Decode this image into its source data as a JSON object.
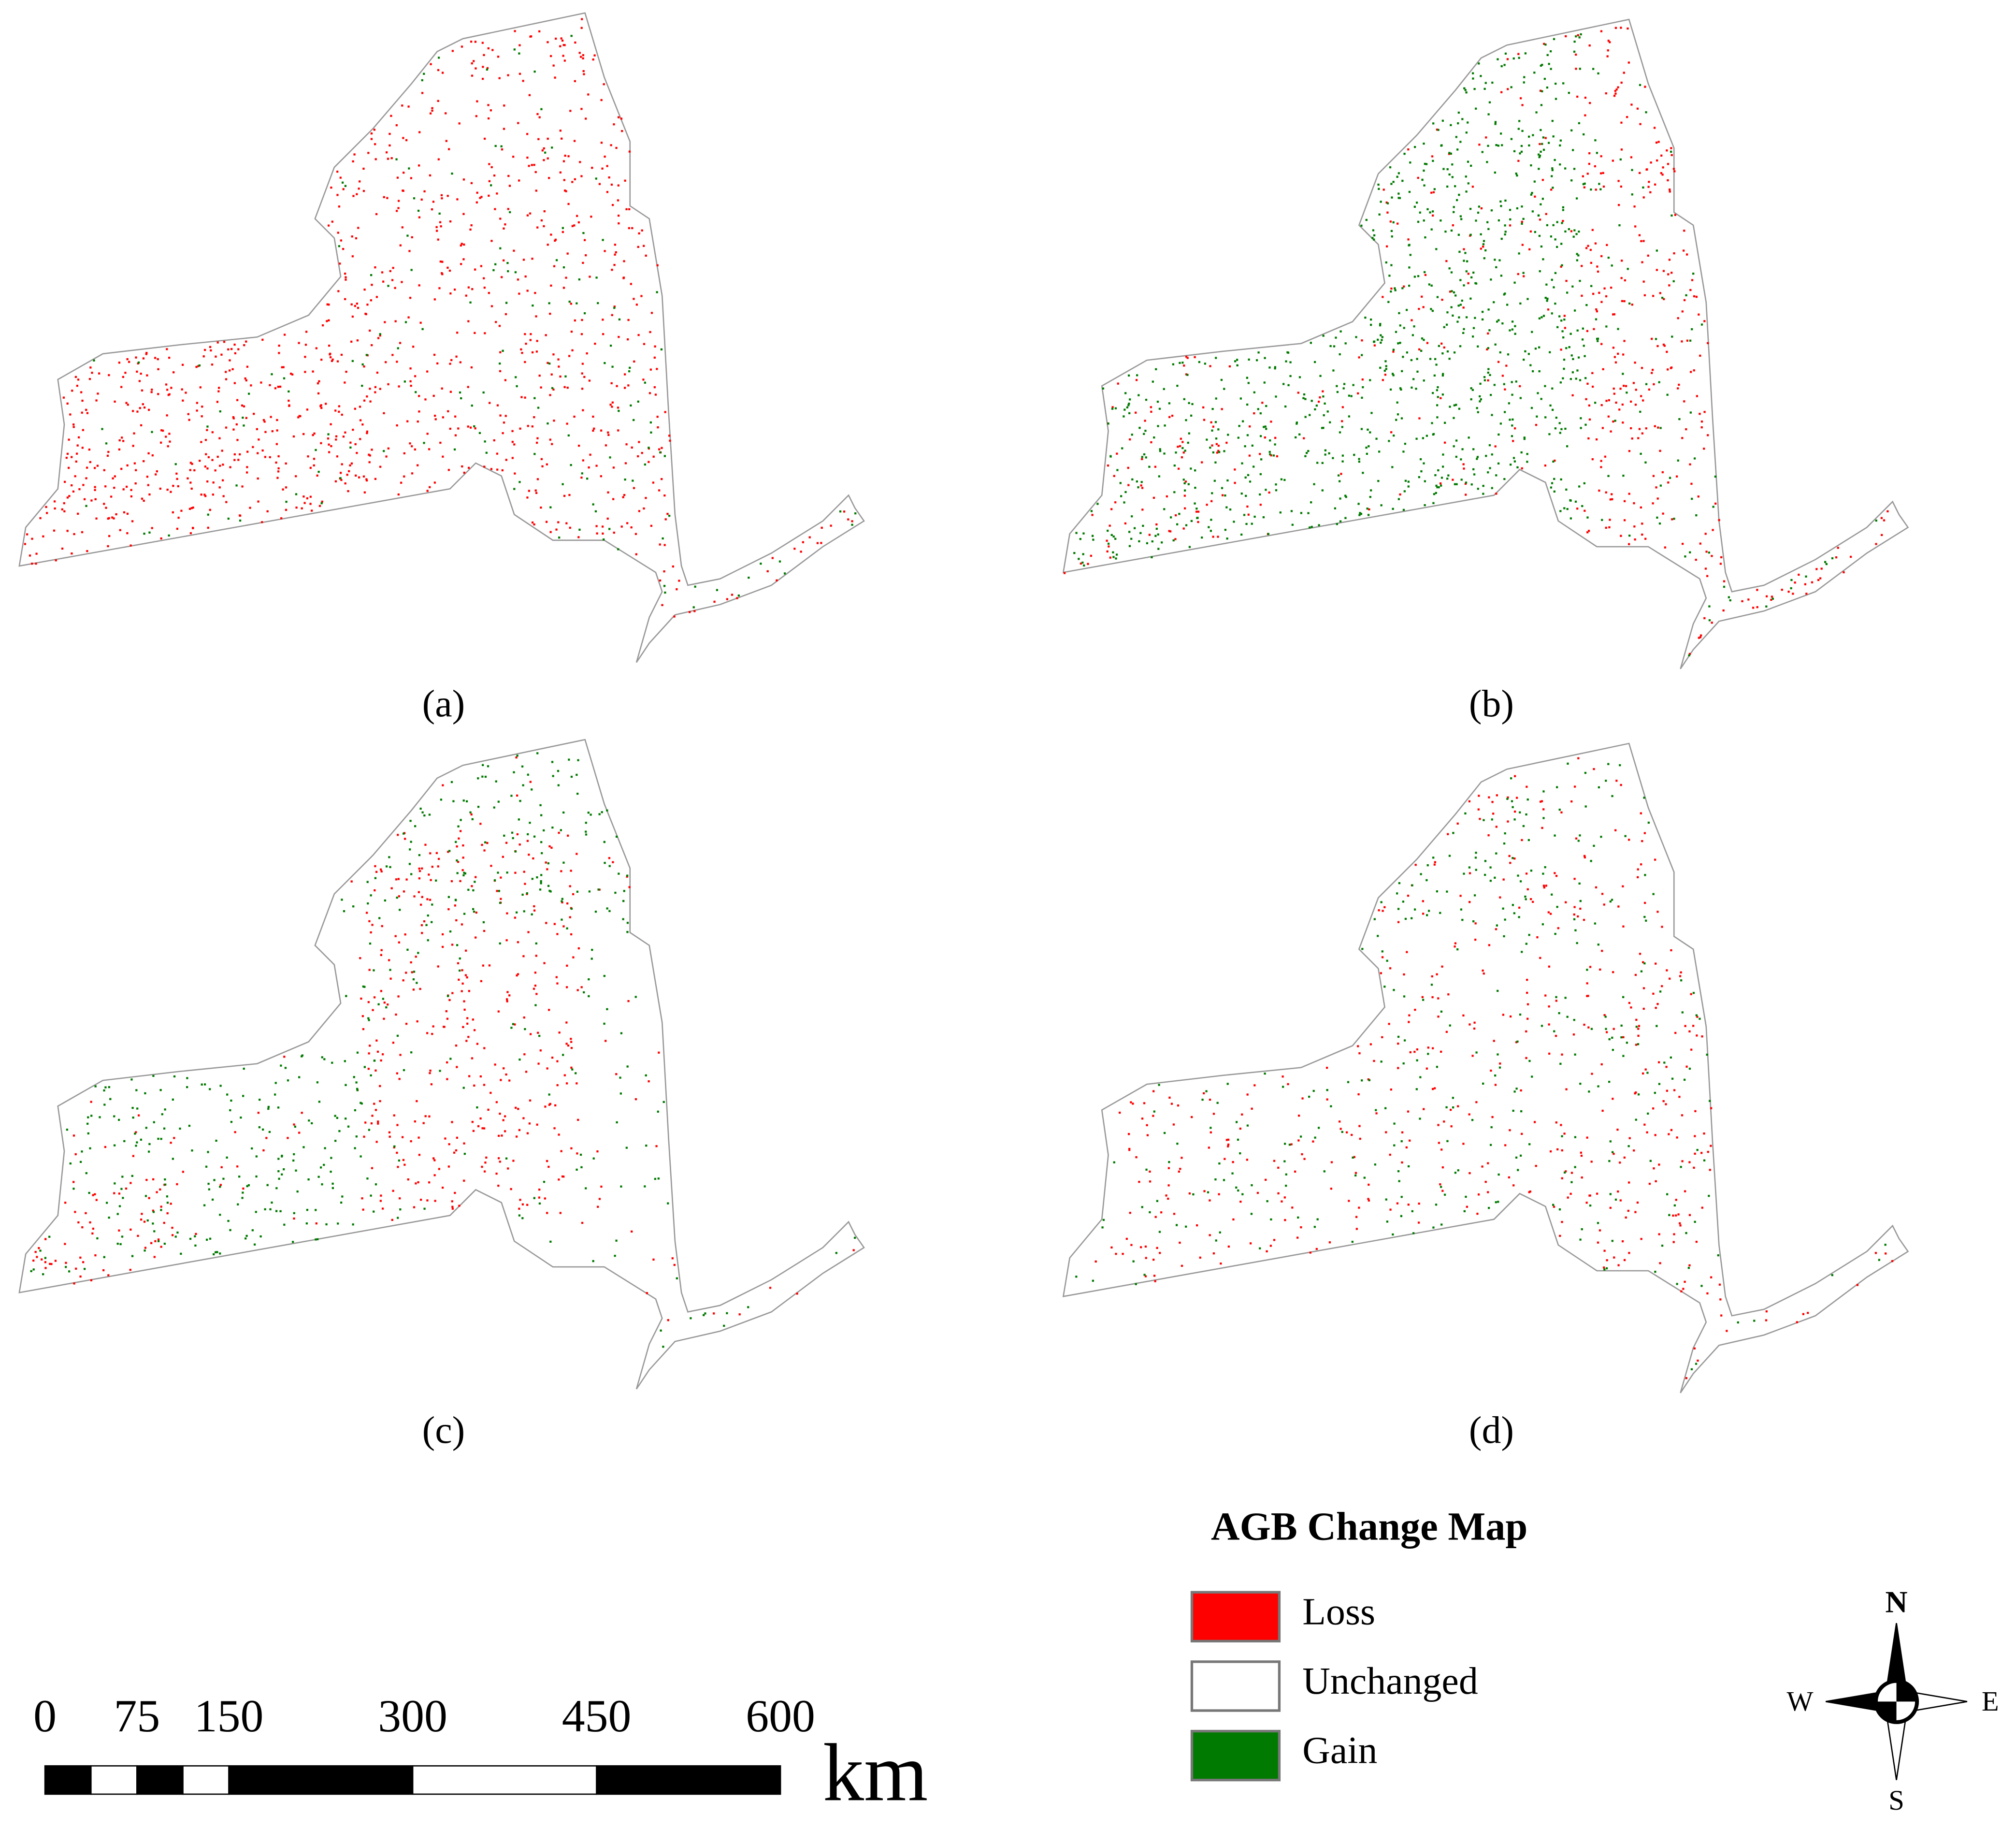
{
  "panels": [
    {
      "label": "(a)"
    },
    {
      "label": "(b)"
    },
    {
      "label": "(c)"
    },
    {
      "label": "(d)"
    }
  ],
  "legend": {
    "title": "AGB Change Map",
    "items": [
      {
        "label": "Loss",
        "color": "#ff0000"
      },
      {
        "label": "Unchanged",
        "color": "#ffffff"
      },
      {
        "label": "Gain",
        "color": "#007a00"
      }
    ]
  },
  "scale_bar": {
    "ticks": [
      0,
      75,
      150,
      300,
      450,
      600
    ],
    "unit": "km"
  },
  "compass": {
    "north": "N",
    "south": "S",
    "east": "E",
    "west": "W"
  }
}
